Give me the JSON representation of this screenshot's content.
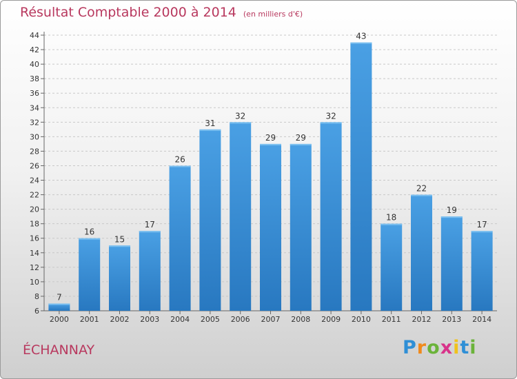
{
  "title": "Résultat Comptable 2000 à 2014",
  "title_unit": "(en milliers d'€)",
  "commune": "ÉCHANNAY",
  "logo": {
    "letters": [
      "P",
      "r",
      "o",
      "x",
      "i",
      "t",
      "i"
    ],
    "colors": [
      "#2f8fd6",
      "#f08a1c",
      "#6bb33a",
      "#d8338a",
      "#f0c21c",
      "#2f8fd6",
      "#6bb33a"
    ]
  },
  "colors": {
    "bar": "#4aa0e4",
    "bar_dark": "#2878c0"
  },
  "chart_data": {
    "type": "bar",
    "title": "Résultat Comptable 2000 à 2014",
    "categories": [
      "2000",
      "2001",
      "2002",
      "2003",
      "2004",
      "2005",
      "2006",
      "2007",
      "2008",
      "2009",
      "2010",
      "2011",
      "2012",
      "2013",
      "2014"
    ],
    "values": [
      7,
      16,
      15,
      17,
      26,
      31,
      32,
      29,
      29,
      32,
      43,
      18,
      22,
      19,
      17
    ],
    "ylim": [
      6,
      44
    ],
    "yticks": [
      6,
      8,
      10,
      12,
      14,
      16,
      18,
      20,
      22,
      24,
      26,
      28,
      30,
      32,
      34,
      36,
      38,
      40,
      42,
      44
    ],
    "grid": true,
    "xlabel": "",
    "ylabel": ""
  }
}
